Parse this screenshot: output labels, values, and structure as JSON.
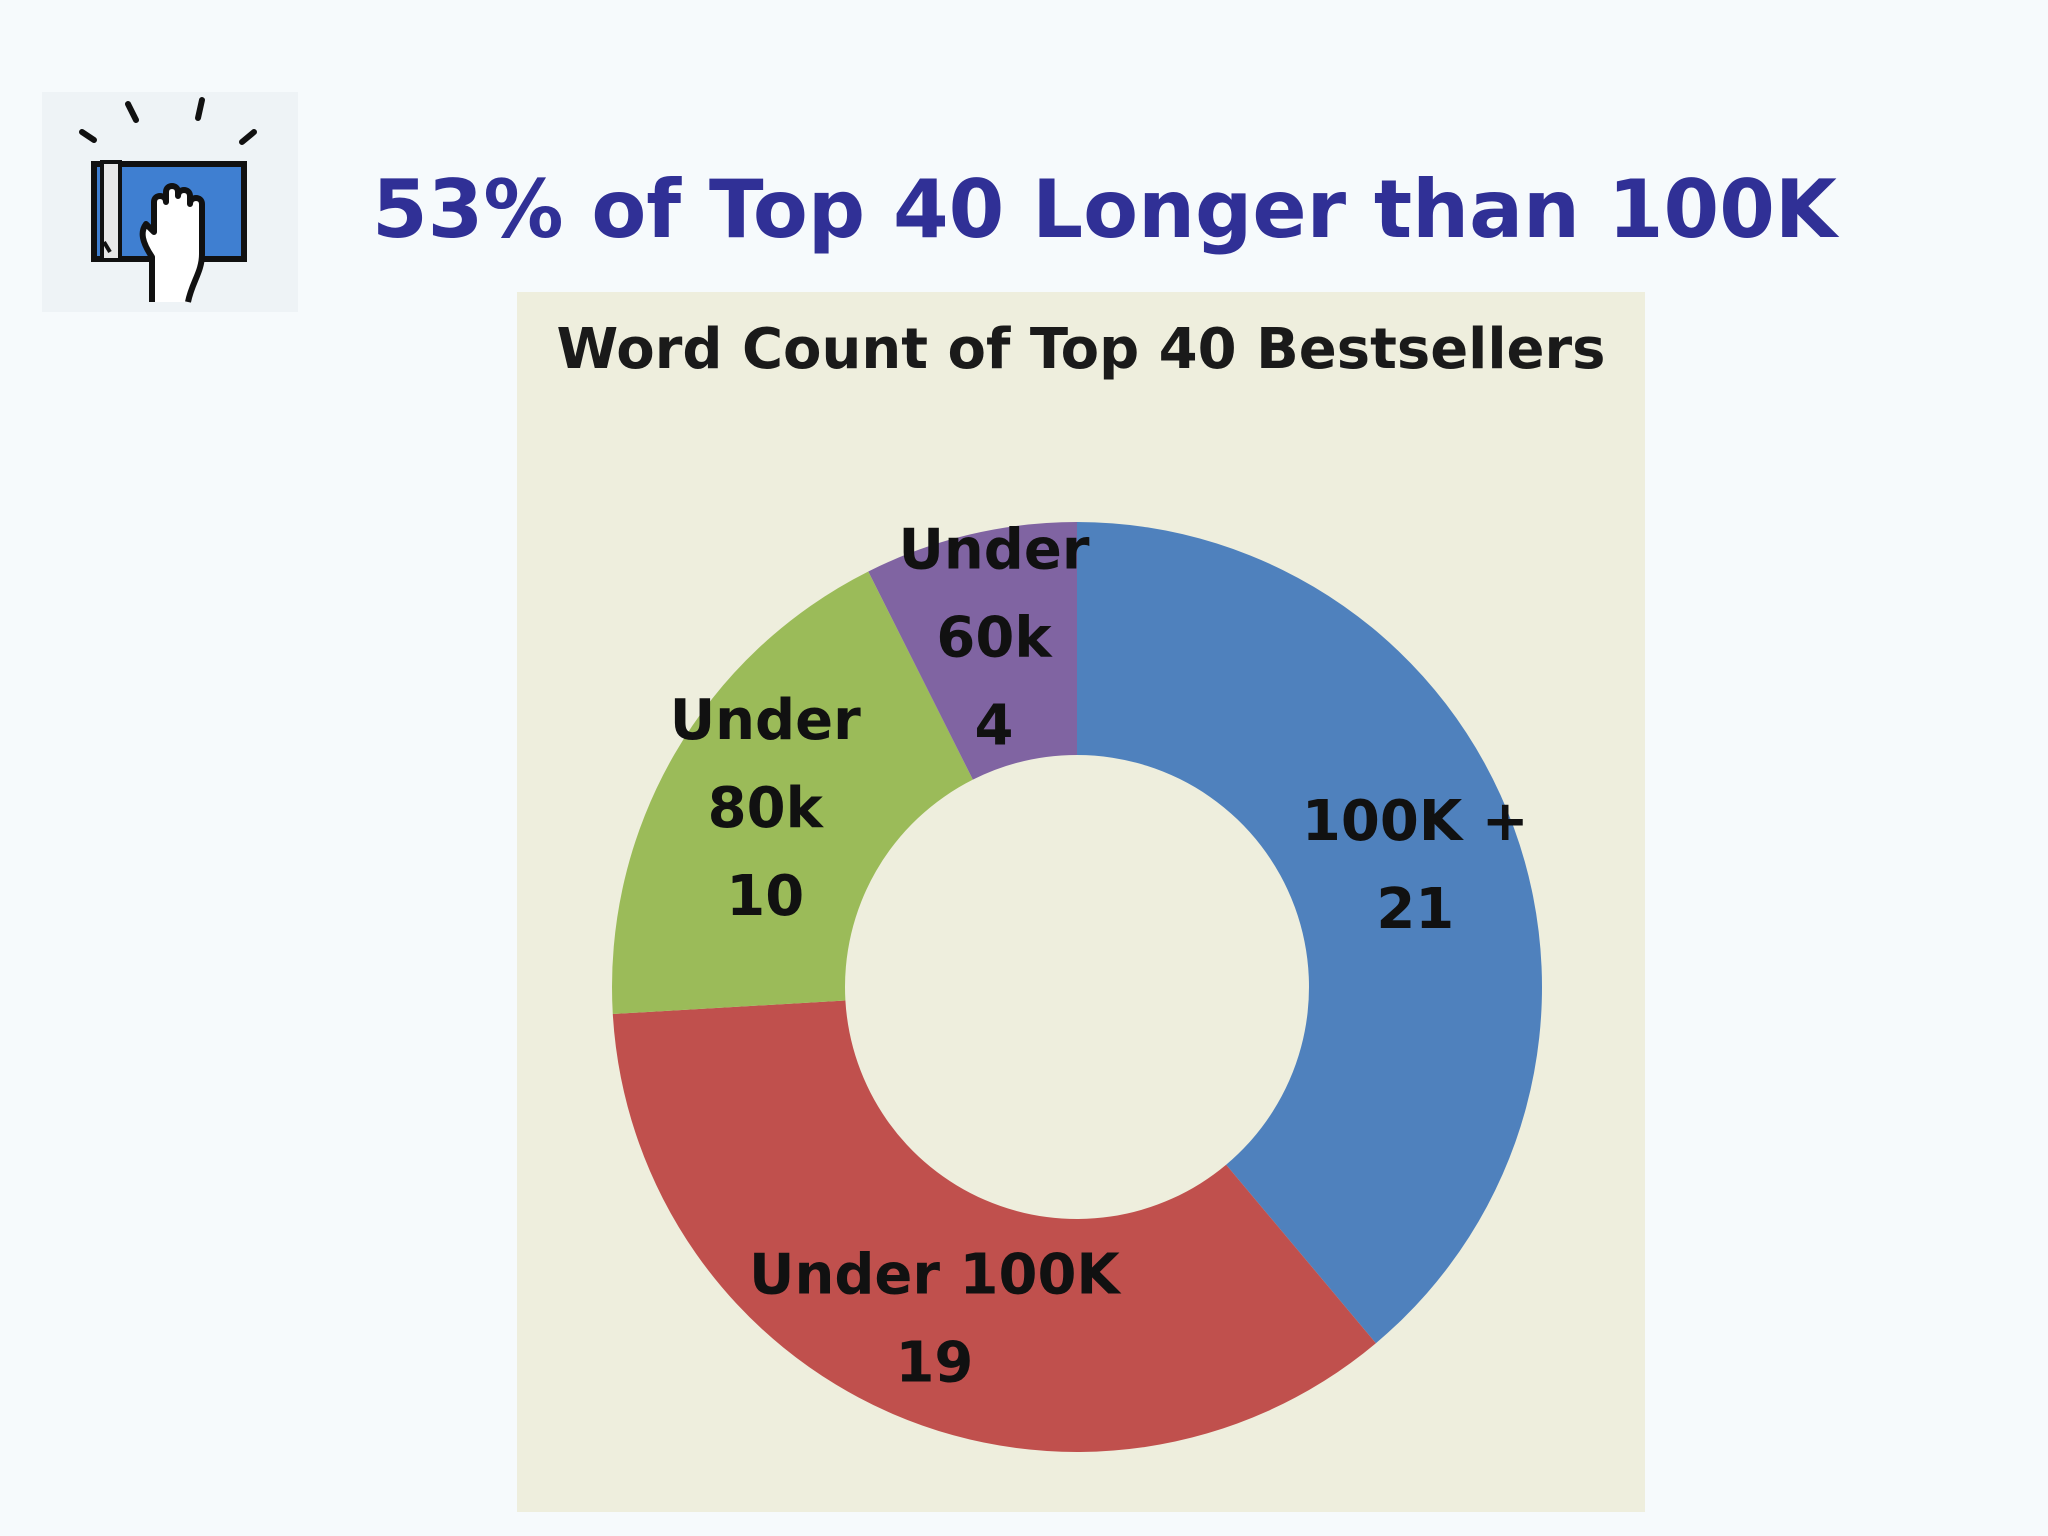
{
  "slide": {
    "title": "53% of Top 40 Longer than 100K",
    "logo_icon": "book-hand-icon"
  },
  "colors": {
    "title": "#303096",
    "chart_background": "#eeeedd"
  },
  "chart_data": {
    "type": "pie",
    "variant": "donut",
    "title": "Word Count of Top 40 Bestsellers",
    "start": "12 o'clock, clockwise",
    "legend": "none",
    "slices": [
      {
        "name": "100K +",
        "value": 21,
        "color": "#4f81bd",
        "label_lines": [
          "100K +",
          "21"
        ]
      },
      {
        "name": "Under 100K",
        "value": 19,
        "color": "#c0504d",
        "label_lines": [
          "Under 100K",
          "19"
        ]
      },
      {
        "name": "Under 80k",
        "value": 10,
        "color": "#9bbb59",
        "label_lines": [
          "Under",
          "80k",
          "10"
        ]
      },
      {
        "name": "Under 60k",
        "value": 4,
        "color": "#8064a2",
        "label_lines": [
          "Under",
          "60k",
          "4"
        ]
      }
    ]
  }
}
